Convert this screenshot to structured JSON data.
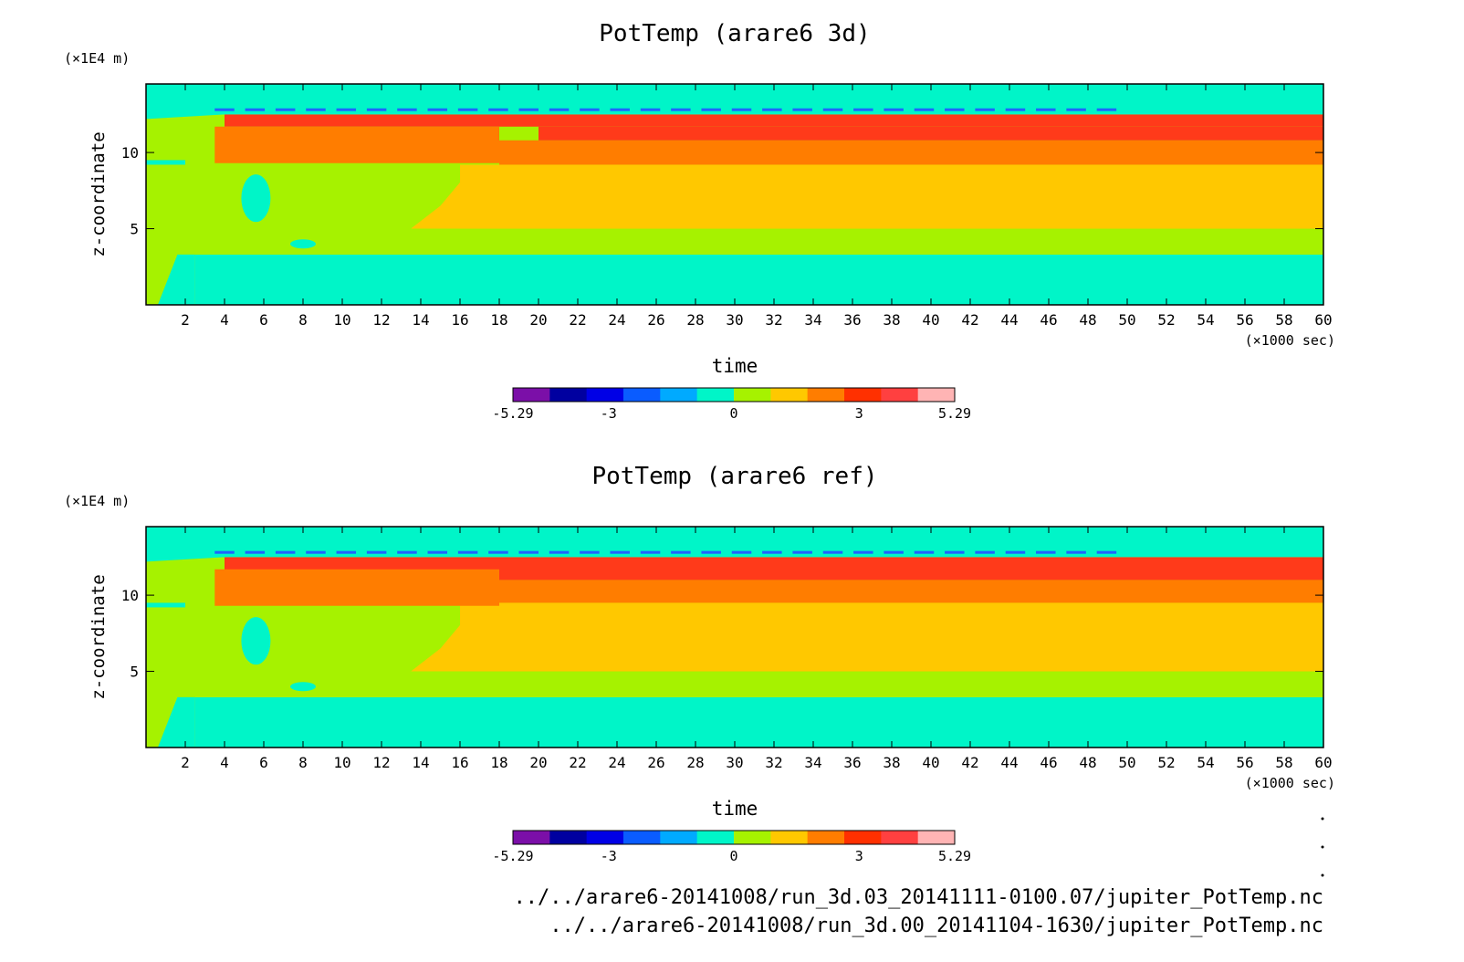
{
  "chart_data": [
    {
      "type": "heatmap",
      "title": "PotTemp (arare6 3d)",
      "xlabel": "time",
      "ylabel": "z-coordinate",
      "x_unit_label": "(×1000 sec)",
      "y_unit_label": "(×1E4 m)",
      "xlim": [
        0,
        60
      ],
      "ylim": [
        0,
        14.5
      ],
      "xticks": [
        2,
        4,
        6,
        8,
        10,
        12,
        14,
        16,
        18,
        20,
        22,
        24,
        26,
        28,
        30,
        32,
        34,
        36,
        38,
        40,
        42,
        44,
        46,
        48,
        50,
        52,
        54,
        56,
        58,
        60
      ],
      "yticks": [
        5,
        10
      ],
      "colorbar": {
        "min": -5.29,
        "max": 5.29,
        "tick_labels": [
          "-5.29",
          "-3",
          "0",
          "3",
          "5.29"
        ],
        "tick_values": [
          -5.29,
          -3,
          0,
          3,
          5.29
        ]
      },
      "bands": [
        {
          "z_from": 0.0,
          "z_to": 3.3,
          "x_start": 2.5,
          "level": "cyan"
        },
        {
          "z_from": 3.3,
          "z_to": 5.0,
          "x_start": 0,
          "level": "green"
        },
        {
          "z_from": 5.0,
          "z_to": 9.2,
          "x_start": 16,
          "level": "yellow"
        },
        {
          "z_from": 9.2,
          "z_to": 10.8,
          "x_start": 18,
          "level": "orange"
        },
        {
          "z_from": 10.8,
          "z_to": 11.7,
          "x_start": 20,
          "level": "red"
        },
        {
          "z_from": 11.7,
          "z_to": 12.5,
          "x_start": 4,
          "level": "red"
        },
        {
          "z_from": 12.5,
          "z_to": 14.5,
          "x_start": 0,
          "level": "cyan"
        }
      ]
    },
    {
      "type": "heatmap",
      "title": "PotTemp (arare6 ref)",
      "xlabel": "time",
      "ylabel": "z-coordinate",
      "x_unit_label": "(×1000 sec)",
      "y_unit_label": "(×1E4 m)",
      "xlim": [
        0,
        60
      ],
      "ylim": [
        0,
        14.5
      ],
      "xticks": [
        2,
        4,
        6,
        8,
        10,
        12,
        14,
        16,
        18,
        20,
        22,
        24,
        26,
        28,
        30,
        32,
        34,
        36,
        38,
        40,
        42,
        44,
        46,
        48,
        50,
        52,
        54,
        56,
        58,
        60
      ],
      "yticks": [
        5,
        10
      ],
      "colorbar": {
        "min": -5.29,
        "max": 5.29,
        "tick_labels": [
          "-5.29",
          "-3",
          "0",
          "3",
          "5.29"
        ],
        "tick_values": [
          -5.29,
          -3,
          0,
          3,
          5.29
        ]
      },
      "bands": [
        {
          "z_from": 0.0,
          "z_to": 3.3,
          "x_start": 2.5,
          "level": "cyan"
        },
        {
          "z_from": 3.3,
          "z_to": 5.0,
          "x_start": 0,
          "level": "green"
        },
        {
          "z_from": 5.0,
          "z_to": 9.5,
          "x_start": 16,
          "level": "yellow"
        },
        {
          "z_from": 9.5,
          "z_to": 11.0,
          "x_start": 18,
          "level": "orange"
        },
        {
          "z_from": 11.0,
          "z_to": 12.5,
          "x_start": 4,
          "level": "red"
        },
        {
          "z_from": 12.5,
          "z_to": 14.5,
          "x_start": 0,
          "level": "cyan"
        }
      ]
    }
  ],
  "colorbar_colors": [
    "#7b0fa8",
    "#0000a0",
    "#0000e6",
    "#0a5cff",
    "#00aaff",
    "#00f5c8",
    "#a6f200",
    "#ffc800",
    "#ff7d00",
    "#ff3000",
    "#ff4040",
    "#ffb4b4"
  ],
  "level_colors": {
    "cyan": "#00f5c8",
    "green": "#a6f200",
    "yellow": "#ffc800",
    "orange": "#ff7d00",
    "red": "#ff3a1a",
    "blue": "#1e64ff"
  },
  "footer": {
    "path_1": "../../arare6-20141008/run_3d.03_20141111-0100.07/jupiter_PotTemp.nc",
    "path_2": "../../arare6-20141008/run_3d.00_20141104-1630/jupiter_PotTemp.nc"
  }
}
